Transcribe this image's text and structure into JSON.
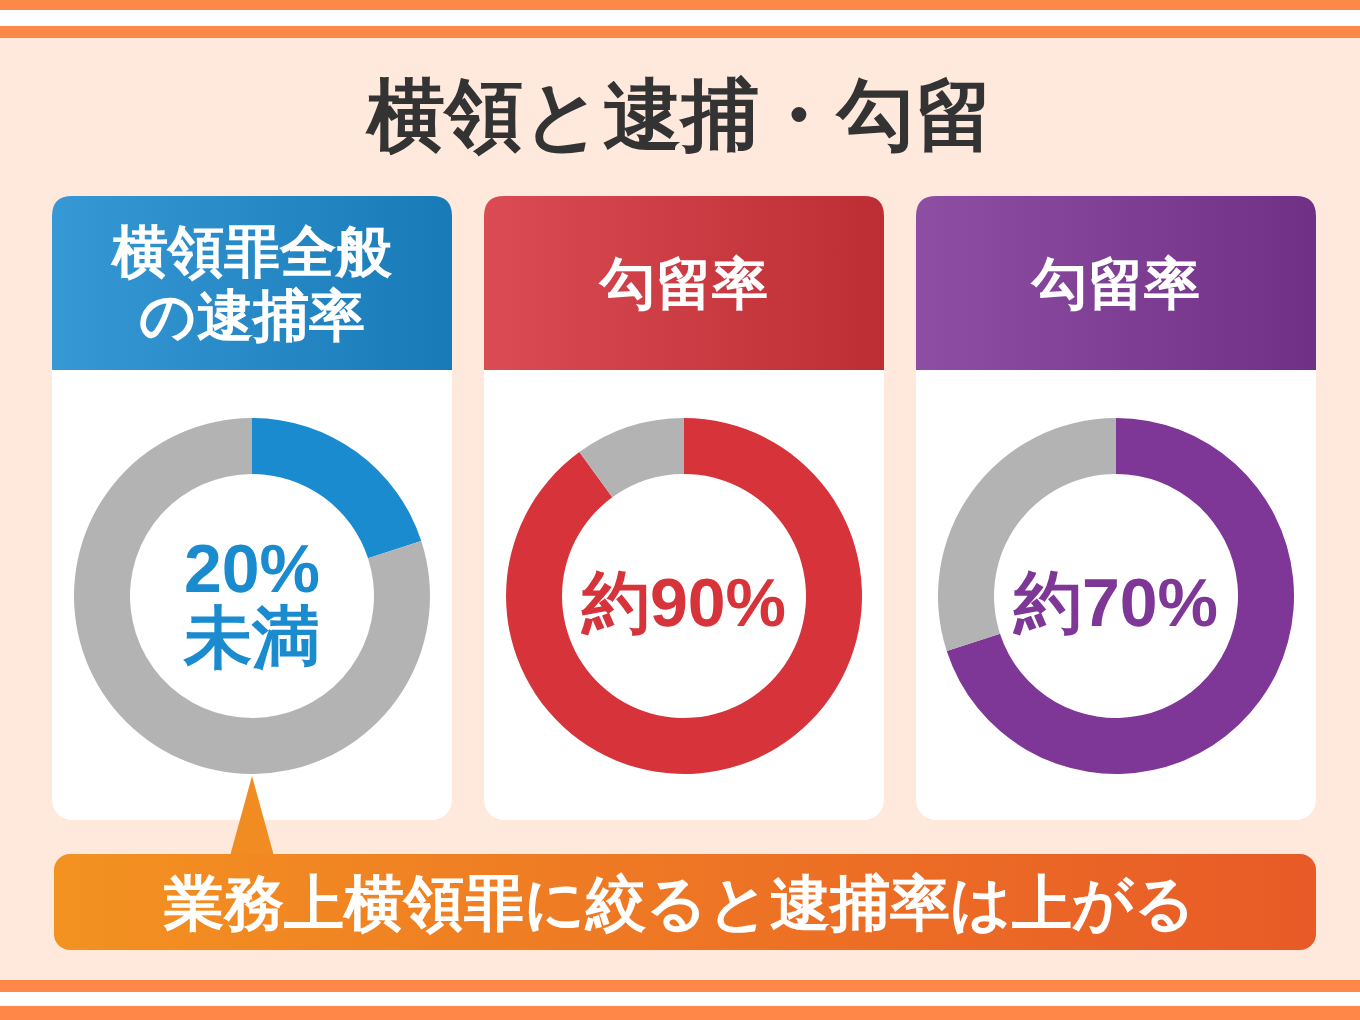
{
  "chart_data": [
    {
      "type": "other",
      "title": "横領と逮捕・勾留"
    },
    {
      "type": "donut",
      "title": "横領罪全般の逮捕率",
      "categories": [
        null,
        null
      ],
      "values": [
        20,
        80
      ],
      "colors": [
        "#1b8bcf",
        "#b3b3b3"
      ],
      "annotations": [
        "20%未満",
        "業務上横領罪に絞ると逮捕率は上がる"
      ]
    },
    {
      "type": "donut",
      "title": "勾留率",
      "categories": [
        null,
        null
      ],
      "values": [
        90,
        10
      ],
      "colors": [
        "#d6333b",
        "#b3b3b3"
      ],
      "annotations": [
        "約90%"
      ]
    },
    {
      "type": "donut",
      "title": "勾留率",
      "categories": [
        null,
        null
      ],
      "values": [
        70,
        30
      ],
      "colors": [
        "#7e3697",
        "#b3b3b3"
      ],
      "annotations": [
        "約70%"
      ]
    }
  ]
}
